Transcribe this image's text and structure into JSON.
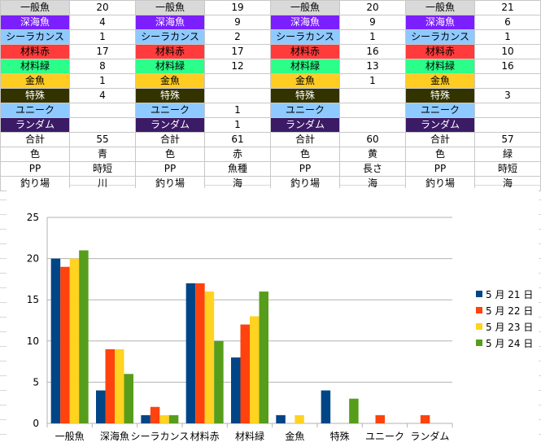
{
  "table": {
    "blocks": [
      {
        "colors": {
          "一般魚": "#d9d9d9",
          "深海魚": "#7b1fff",
          "シーラカンス": "#8ec9ff",
          "材料赤": "#ff3b3b",
          "材料緑": "#2bff8a",
          "金魚": "#ffcc22",
          "特殊": "#333300",
          "ユニーク": "#8ec9ff",
          "ランダム": "#3b1a66"
        }
      }
    ],
    "label_colors": {
      "row_bg": [
        "#d9d9d9",
        "#7b1fff",
        "#8ec9ff",
        "#ff3b3b",
        "#2bff8a",
        "#ffcc22",
        "#333300",
        "#8ec9ff",
        "#3b1a66",
        "#ffffff",
        "#ffffff",
        "#ffffff",
        "#ffffff"
      ],
      "row_fg": [
        "#000000",
        "#ffffff",
        "#000000",
        "#000000",
        "#000000",
        "#000000",
        "#ffffff",
        "#000000",
        "#ffffff",
        "#000000",
        "#000000",
        "#000000",
        "#000000"
      ]
    },
    "rows": [
      {
        "label": "一般魚",
        "values": [
          "20",
          "19",
          "20",
          "21"
        ]
      },
      {
        "label": "深海魚",
        "values": [
          "4",
          "9",
          "9",
          "6"
        ]
      },
      {
        "label": "シーラカンス",
        "values": [
          "1",
          "2",
          "1",
          "1"
        ]
      },
      {
        "label": "材料赤",
        "values": [
          "17",
          "17",
          "16",
          "10"
        ]
      },
      {
        "label": "材料緑",
        "values": [
          "8",
          "12",
          "13",
          "16"
        ]
      },
      {
        "label": "金魚",
        "values": [
          "1",
          "",
          "1",
          ""
        ]
      },
      {
        "label": "特殊",
        "values": [
          "4",
          "",
          "",
          "3"
        ]
      },
      {
        "label": "ユニーク",
        "values": [
          "",
          "1",
          "",
          ""
        ]
      },
      {
        "label": "ランダム",
        "values": [
          "",
          "1",
          "",
          ""
        ]
      },
      {
        "label": "合計",
        "values": [
          "55",
          "61",
          "60",
          "57"
        ]
      },
      {
        "label": "色",
        "values": [
          "青",
          "赤",
          "黄",
          "緑"
        ]
      },
      {
        "label": "PP",
        "values": [
          "時短",
          "魚種",
          "長さ",
          "時短"
        ]
      },
      {
        "label": "釣り場",
        "values": [
          "川",
          "海",
          "海",
          "海"
        ]
      }
    ]
  },
  "chart_data": {
    "type": "bar",
    "categories": [
      "一般魚",
      "深海魚",
      "シーラカンス",
      "材料赤",
      "材料緑",
      "金魚",
      "特殊",
      "ユニーク",
      "ランダム"
    ],
    "series": [
      {
        "name": "5 月 21 日",
        "color": "#004586",
        "values": [
          20,
          4,
          1,
          17,
          8,
          1,
          4,
          0,
          0
        ]
      },
      {
        "name": "5 月 22 日",
        "color": "#ff420e",
        "values": [
          19,
          9,
          2,
          17,
          12,
          0,
          0,
          1,
          1
        ]
      },
      {
        "name": "5 月 23 日",
        "color": "#ffd320",
        "values": [
          20,
          9,
          1,
          16,
          13,
          1,
          0,
          0,
          0
        ]
      },
      {
        "name": "5 月 24 日",
        "color": "#579d1c",
        "values": [
          21,
          6,
          1,
          10,
          16,
          0,
          3,
          0,
          0
        ]
      }
    ],
    "yticks": [
      "0",
      "5",
      "10",
      "15",
      "20",
      "25"
    ],
    "ylim": [
      0,
      25
    ],
    "grid": true,
    "legend": "right",
    "title": "",
    "xlabel": "",
    "ylabel": ""
  }
}
